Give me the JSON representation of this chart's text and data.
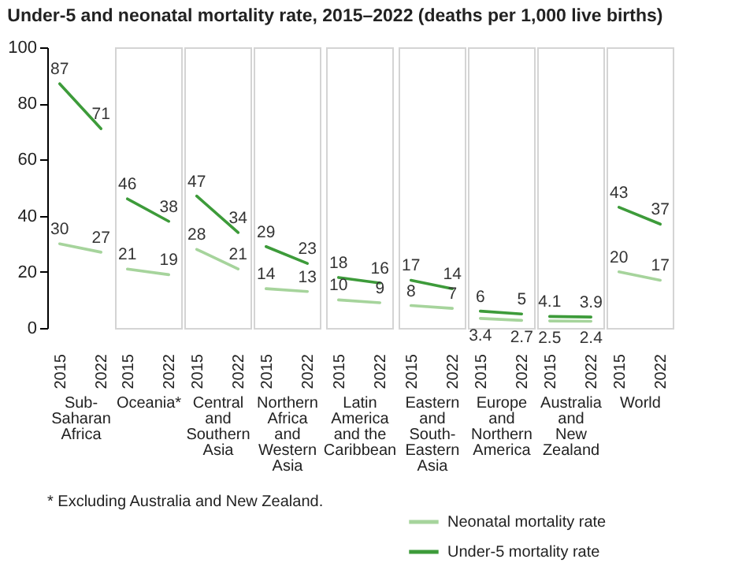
{
  "chart_data": [
    {
      "type": "line",
      "title": "Under-5 and neonatal mortality rate, 2015–2022 (deaths per 1,000 live births)",
      "xlabel": "Sub-\nSaharan\nAfrica",
      "categories": [
        "2015",
        "2022"
      ],
      "ylim": [
        0,
        100
      ],
      "yticks": [
        0,
        20,
        40,
        60,
        80,
        100
      ],
      "data_labels": true,
      "legend": "bottom right",
      "series": [
        {
          "name": "Neonatal mortality rate",
          "color": "#a6d49c",
          "values": [
            30,
            27
          ]
        },
        {
          "name": "Under-5 mortality rate",
          "color": "#3d9b3a",
          "values": [
            87,
            71
          ]
        }
      ]
    },
    {
      "type": "line",
      "xlabel": "Oceania*",
      "categories": [
        "2015",
        "2022"
      ],
      "ylim": [
        0,
        100
      ],
      "data_labels": true,
      "tick_labels": "x",
      "series": [
        {
          "name": "Neonatal mortality rate",
          "color": "#a6d49c",
          "values": [
            21,
            19
          ]
        },
        {
          "name": "Under-5 mortality rate",
          "color": "#3d9b3a",
          "values": [
            46,
            38
          ]
        }
      ]
    },
    {
      "type": "line",
      "xlabel": "Central\nand\nSouthern\nAsia",
      "categories": [
        "2015",
        "2022"
      ],
      "ylim": [
        0,
        100
      ],
      "data_labels": true,
      "tick_labels": "x",
      "series": [
        {
          "name": "Neonatal mortality rate",
          "color": "#a6d49c",
          "values": [
            28,
            21
          ]
        },
        {
          "name": "Under-5 mortality rate",
          "color": "#3d9b3a",
          "values": [
            47,
            34
          ]
        }
      ]
    },
    {
      "type": "line",
      "xlabel": "Northern\nAfrica\nand\nWestern\nAsia",
      "categories": [
        "2015",
        "2022"
      ],
      "ylim": [
        0,
        100
      ],
      "data_labels": true,
      "tick_labels": "x",
      "series": [
        {
          "name": "Neonatal mortality rate",
          "color": "#a6d49c",
          "values": [
            14,
            13
          ]
        },
        {
          "name": "Under-5 mortality rate",
          "color": "#3d9b3a",
          "values": [
            29,
            23
          ]
        }
      ]
    },
    {
      "type": "line",
      "xlabel": "Latin\nAmerica\nand the\nCaribbean",
      "categories": [
        "2015",
        "2022"
      ],
      "ylim": [
        0,
        100
      ],
      "data_labels": true,
      "tick_labels": "x",
      "series": [
        {
          "name": "Neonatal mortality rate",
          "color": "#a6d49c",
          "values": [
            10,
            9
          ]
        },
        {
          "name": "Under-5 mortality rate",
          "color": "#3d9b3a",
          "values": [
            18,
            16
          ]
        }
      ]
    },
    {
      "type": "line",
      "xlabel": "Eastern\nand\nSouth-\nEastern\nAsia",
      "categories": [
        "2015",
        "2022"
      ],
      "ylim": [
        0,
        100
      ],
      "data_labels": true,
      "tick_labels": "x",
      "series": [
        {
          "name": "Neonatal mortality rate",
          "color": "#a6d49c",
          "values": [
            8,
            7
          ]
        },
        {
          "name": "Under-5 mortality rate",
          "color": "#3d9b3a",
          "values": [
            17,
            14
          ]
        }
      ]
    },
    {
      "type": "line",
      "xlabel": "Europe\nand\nNorthern\nAmerica",
      "categories": [
        "2015",
        "2022"
      ],
      "ylim": [
        0,
        100
      ],
      "data_labels": true,
      "tick_labels": "x",
      "series": [
        {
          "name": "Neonatal mortality rate",
          "color": "#a6d49c",
          "values": [
            3.4,
            2.7
          ]
        },
        {
          "name": "Under-5 mortality rate",
          "color": "#3d9b3a",
          "values": [
            6,
            5
          ]
        }
      ]
    },
    {
      "type": "line",
      "xlabel": "Australia\nand\nNew\nZealand",
      "categories": [
        "2015",
        "2022"
      ],
      "ylim": [
        0,
        100
      ],
      "data_labels": true,
      "tick_labels": "x",
      "series": [
        {
          "name": "Neonatal mortality rate",
          "color": "#a6d49c",
          "values": [
            2.5,
            2.4
          ]
        },
        {
          "name": "Under-5 mortality rate",
          "color": "#3d9b3a",
          "values": [
            4.1,
            3.9
          ]
        }
      ]
    },
    {
      "type": "line",
      "xlabel": "World",
      "categories": [
        "2015",
        "2022"
      ],
      "ylim": [
        0,
        100
      ],
      "data_labels": true,
      "tick_labels": "x",
      "annotations": [
        "* Excluding Australia and New Zealand."
      ],
      "series": [
        {
          "name": "Neonatal mortality rate",
          "color": "#a6d49c",
          "values": [
            20,
            17
          ]
        },
        {
          "name": "Under-5 mortality rate",
          "color": "#3d9b3a",
          "values": [
            43,
            37
          ]
        }
      ]
    }
  ]
}
